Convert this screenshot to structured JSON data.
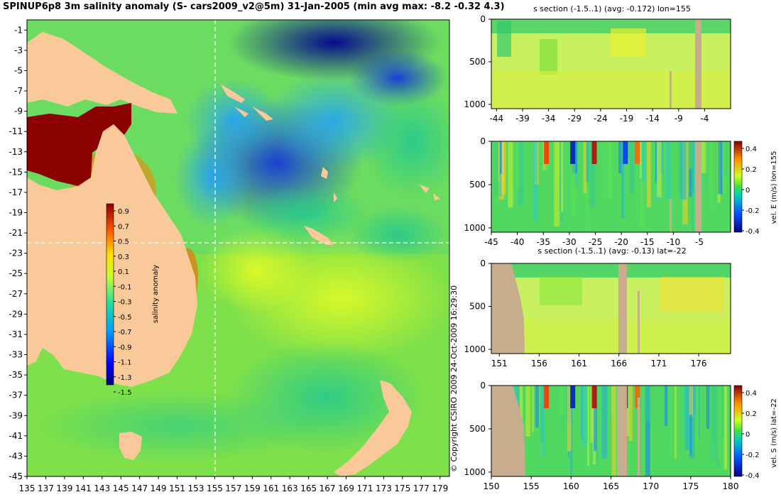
{
  "title": "SPINUP6p8 3m salinity anomaly (S- cars2009_v2@5m) 31-Jan-2005 (min avg max: -8.2 -0.32 4.3)",
  "copyright": "© Copyright CSIRO 2009   24-Oct-2009 16:29:30",
  "colors": {
    "land": "#f9c99a",
    "section_land": "#c8ad8d",
    "frame": "#000000"
  },
  "chart_data": [
    {
      "type": "heatmap",
      "id": "map",
      "title": "",
      "colorbar_label": "salinity anomaly",
      "colorbar_ticks": [
        "0.9",
        "0.7",
        "0.5",
        "0.3",
        "0.1",
        "-0.1",
        "-0.3",
        "-0.5",
        "-0.7",
        "-0.9",
        "-1.1",
        "-1.3",
        "-1.5"
      ],
      "colorbar_range": [
        -1.5,
        0.9
      ],
      "xticks": [
        "135",
        "137",
        "139",
        "141",
        "143",
        "145",
        "147",
        "149",
        "151",
        "153",
        "155",
        "157",
        "159",
        "161",
        "163",
        "165",
        "167",
        "169",
        "171",
        "173",
        "175",
        "177",
        "179"
      ],
      "yticks": [
        "-1",
        "-3",
        "-5",
        "-7",
        "-9",
        "-11",
        "-13",
        "-15",
        "-17",
        "-19",
        "-21",
        "-23",
        "-25",
        "-27",
        "-29",
        "-31",
        "-33",
        "-35",
        "-37",
        "-39",
        "-41",
        "-43",
        "-45"
      ],
      "xlim": [
        135,
        180
      ],
      "ylim": [
        -45,
        0
      ],
      "section_lon": 155,
      "section_lat": -22
    },
    {
      "type": "heatmap",
      "id": "sec1",
      "title": "s section (-1.5..1) (avg: -0.172) lon=155",
      "xticks": [
        "-44",
        "-39",
        "-34",
        "-29",
        "-24",
        "-19",
        "-14",
        "-9",
        "-4"
      ],
      "yticks": [
        "0",
        "500",
        "1000"
      ]
    },
    {
      "type": "heatmap",
      "id": "sec2",
      "title": "",
      "xticks": [
        "-45",
        "-40",
        "-35",
        "-30",
        "-25",
        "-20",
        "-15",
        "-10",
        "-5"
      ],
      "yticks": [
        "0",
        "500",
        "1000"
      ],
      "colorbar_label": "vel. E (m/s) lon=155",
      "colorbar_ticks": [
        "0.4",
        "0.2",
        "0",
        "-0.2",
        "-0.4"
      ],
      "colorbar_range": [
        -0.4,
        0.4
      ]
    },
    {
      "type": "heatmap",
      "id": "sec3",
      "title": "s section (-1.5..1) (avg: -0.13) lat=-22",
      "xticks": [
        "151",
        "156",
        "161",
        "166",
        "171",
        "176"
      ],
      "yticks": [
        "0",
        "500",
        "1000"
      ]
    },
    {
      "type": "heatmap",
      "id": "sec4",
      "title": "",
      "xticks": [
        "150",
        "155",
        "160",
        "165",
        "170",
        "175",
        "180"
      ],
      "yticks": [
        "0",
        "500",
        "1000"
      ],
      "colorbar_label": "vel. S (m/s) lat=-22",
      "colorbar_ticks": [
        "0.4",
        "0.2",
        "0",
        "-0.2",
        "-0.4"
      ],
      "colorbar_range": [
        -0.4,
        0.4
      ]
    }
  ]
}
